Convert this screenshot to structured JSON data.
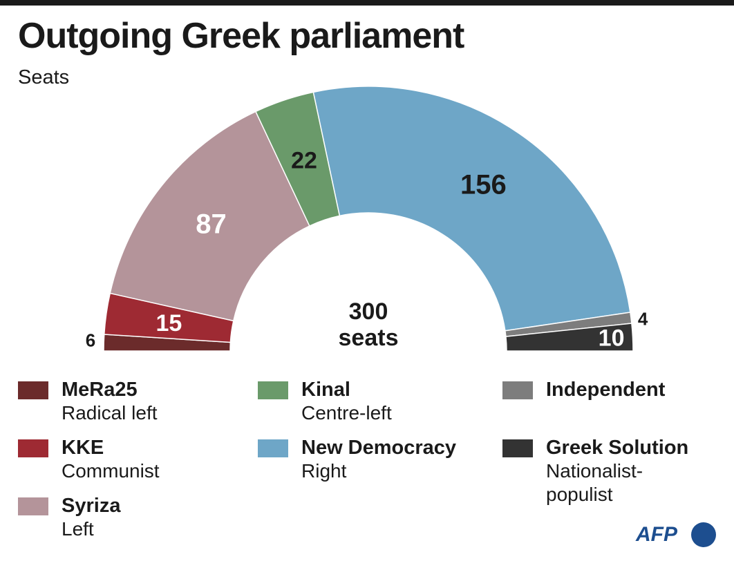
{
  "header": {
    "title": "Outgoing Greek parliament",
    "subtitle": "Seats"
  },
  "chart_data": {
    "type": "pie",
    "variant": "half-donut parliament",
    "title": "Outgoing Greek parliament",
    "subtitle": "Seats",
    "center_label": [
      "300",
      "seats"
    ],
    "total": 300,
    "series": [
      {
        "name": "MeRa25",
        "description": "Radical left",
        "value": 6,
        "color": "#6b2b2b"
      },
      {
        "name": "KKE",
        "description": "Communist",
        "value": 15,
        "color": "#9e2a33"
      },
      {
        "name": "Syriza",
        "description": "Left",
        "value": 87,
        "color": "#b4949a"
      },
      {
        "name": "Kinal",
        "description": "Centre-left",
        "value": 22,
        "color": "#6a9a6a"
      },
      {
        "name": "New Democracy",
        "description": "Right",
        "value": 156,
        "color": "#6ea6c7"
      },
      {
        "name": "Independent",
        "description": "Independent",
        "value": 4,
        "color": "#7d7d7d"
      },
      {
        "name": "Greek Solution",
        "description": "Nationalist-\npopulist",
        "value": 10,
        "color": "#333333"
      }
    ]
  },
  "legend": [
    {
      "name": "MeRa25",
      "desc": "Radical left",
      "color": "#6b2b2b"
    },
    {
      "name": "KKE",
      "desc": "Communist",
      "color": "#9e2a33"
    },
    {
      "name": "Syriza",
      "desc": "Left",
      "color": "#b4949a"
    },
    {
      "name": "Kinal",
      "desc": "Centre-left",
      "color": "#6a9a6a"
    },
    {
      "name": "New Democracy",
      "desc": "Right",
      "color": "#6ea6c7"
    },
    {
      "name": "Independent",
      "desc": "",
      "color": "#7d7d7d"
    },
    {
      "name": "Greek Solution",
      "desc": "Nationalist-\npopulist",
      "color": "#333333"
    }
  ],
  "source": {
    "logo_text": "AFP"
  }
}
